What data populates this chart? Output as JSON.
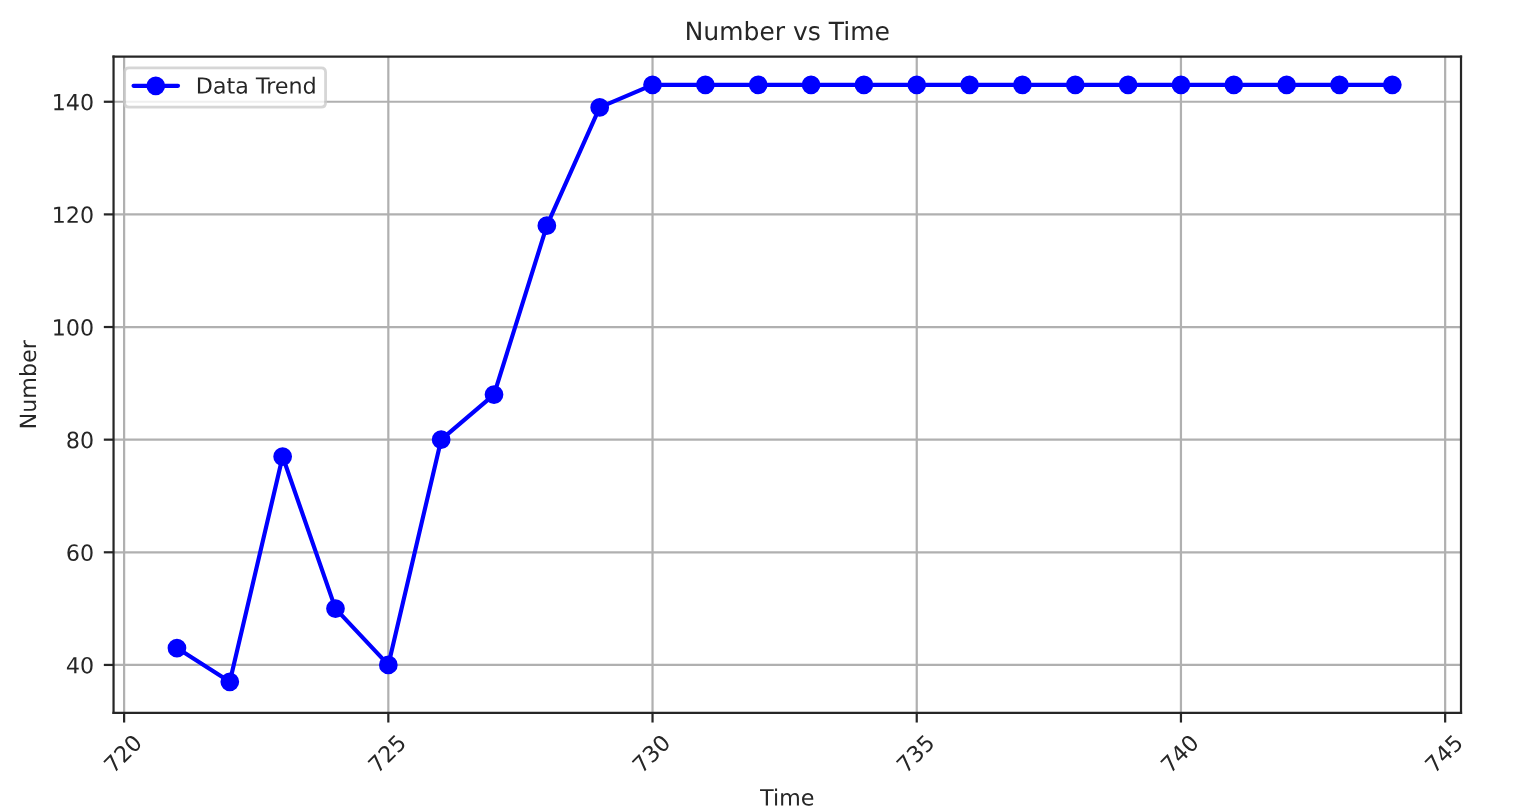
{
  "chart_data": {
    "type": "line",
    "title": "Number vs Time",
    "xlabel": "Time",
    "ylabel": "Number",
    "x": [
      721,
      722,
      723,
      724,
      725,
      726,
      727,
      728,
      729,
      730,
      731,
      732,
      733,
      734,
      735,
      736,
      737,
      738,
      739,
      740,
      741,
      742,
      743,
      744
    ],
    "series": [
      {
        "name": "Data Trend",
        "color": "#0000ff",
        "values": [
          43,
          37,
          77,
          50,
          40,
          80,
          88,
          118,
          139,
          143,
          143,
          143,
          143,
          143,
          143,
          143,
          143,
          143,
          143,
          143,
          143,
          143,
          143,
          143
        ]
      }
    ],
    "xlim": [
      719.8,
      745.3
    ],
    "xticks": [
      720,
      725,
      730,
      735,
      740,
      745
    ],
    "ylim": [
      31.5,
      148
    ],
    "yticks": [
      40,
      60,
      80,
      100,
      120,
      140
    ],
    "grid": true,
    "legend": "top left",
    "marker": "circle",
    "line_style": "solid"
  }
}
